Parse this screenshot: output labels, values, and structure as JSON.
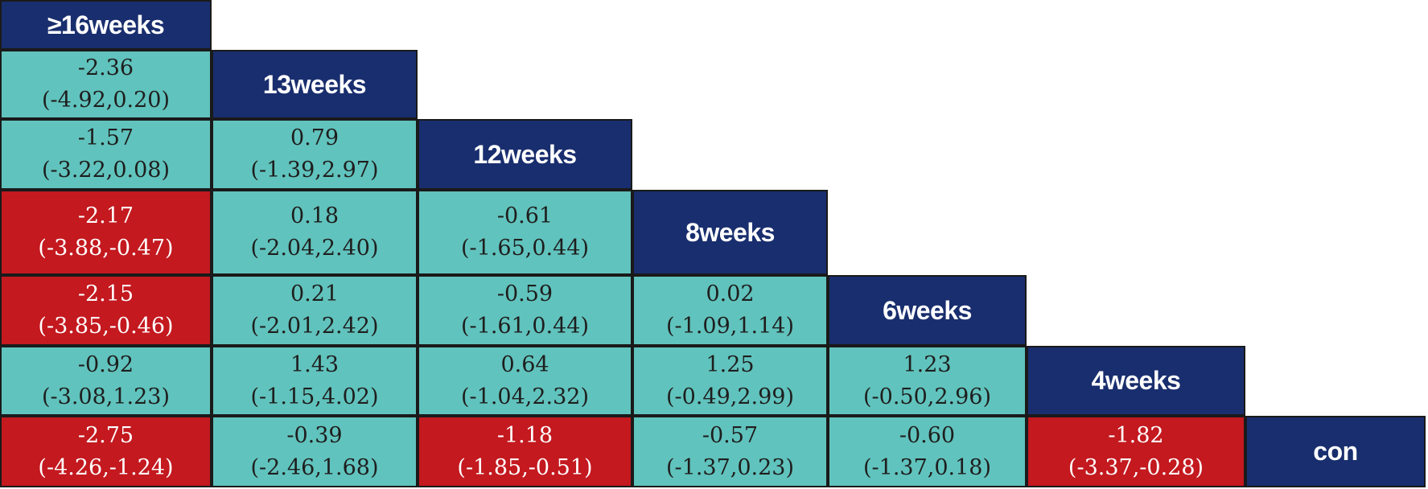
{
  "colors": {
    "header": "#192e6e",
    "nonsignificant": "#61c3bd",
    "significant": "#c3191f",
    "border": "#1a1a1a"
  },
  "chart_data": {
    "type": "table",
    "treatments": [
      "≥16weeks",
      "13weeks",
      "12weeks",
      "8weeks",
      "6weeks",
      "4weeks",
      "con"
    ],
    "cells": [
      {
        "row": 1,
        "col": 0,
        "estimate": "-2.36",
        "ci": "(-4.92,0.20)",
        "significant": false
      },
      {
        "row": 2,
        "col": 0,
        "estimate": "-1.57",
        "ci": "(-3.22,0.08)",
        "significant": false
      },
      {
        "row": 2,
        "col": 1,
        "estimate": "0.79",
        "ci": "(-1.39,2.97)",
        "significant": false
      },
      {
        "row": 3,
        "col": 0,
        "estimate": "-2.17",
        "ci": "(-3.88,-0.47)",
        "significant": true
      },
      {
        "row": 3,
        "col": 1,
        "estimate": "0.18",
        "ci": "(-2.04,2.40)",
        "significant": false
      },
      {
        "row": 3,
        "col": 2,
        "estimate": "-0.61",
        "ci": "(-1.65,0.44)",
        "significant": false
      },
      {
        "row": 4,
        "col": 0,
        "estimate": "-2.15",
        "ci": "(-3.85,-0.46)",
        "significant": true
      },
      {
        "row": 4,
        "col": 1,
        "estimate": "0.21",
        "ci": "(-2.01,2.42)",
        "significant": false
      },
      {
        "row": 4,
        "col": 2,
        "estimate": "-0.59",
        "ci": "(-1.61,0.44)",
        "significant": false
      },
      {
        "row": 4,
        "col": 3,
        "estimate": "0.02",
        "ci": "(-1.09,1.14)",
        "significant": false
      },
      {
        "row": 5,
        "col": 0,
        "estimate": "-0.92",
        "ci": "(-3.08,1.23)",
        "significant": false
      },
      {
        "row": 5,
        "col": 1,
        "estimate": "1.43",
        "ci": "(-1.15,4.02)",
        "significant": false
      },
      {
        "row": 5,
        "col": 2,
        "estimate": "0.64",
        "ci": "(-1.04,2.32)",
        "significant": false
      },
      {
        "row": 5,
        "col": 3,
        "estimate": "1.25",
        "ci": "(-0.49,2.99)",
        "significant": false
      },
      {
        "row": 5,
        "col": 4,
        "estimate": "1.23",
        "ci": "(-0.50,2.96)",
        "significant": false
      },
      {
        "row": 6,
        "col": 0,
        "estimate": "-2.75",
        "ci": "(-4.26,-1.24)",
        "significant": true
      },
      {
        "row": 6,
        "col": 1,
        "estimate": "-0.39",
        "ci": "(-2.46,1.68)",
        "significant": false
      },
      {
        "row": 6,
        "col": 2,
        "estimate": "-1.18",
        "ci": "(-1.85,-0.51)",
        "significant": true
      },
      {
        "row": 6,
        "col": 3,
        "estimate": "-0.57",
        "ci": "(-1.37,0.23)",
        "significant": false
      },
      {
        "row": 6,
        "col": 4,
        "estimate": "-0.60",
        "ci": "(-1.37,0.18)",
        "significant": false
      },
      {
        "row": 6,
        "col": 5,
        "estimate": "-1.82",
        "ci": "(-3.37,-0.28)",
        "significant": true
      }
    ]
  }
}
